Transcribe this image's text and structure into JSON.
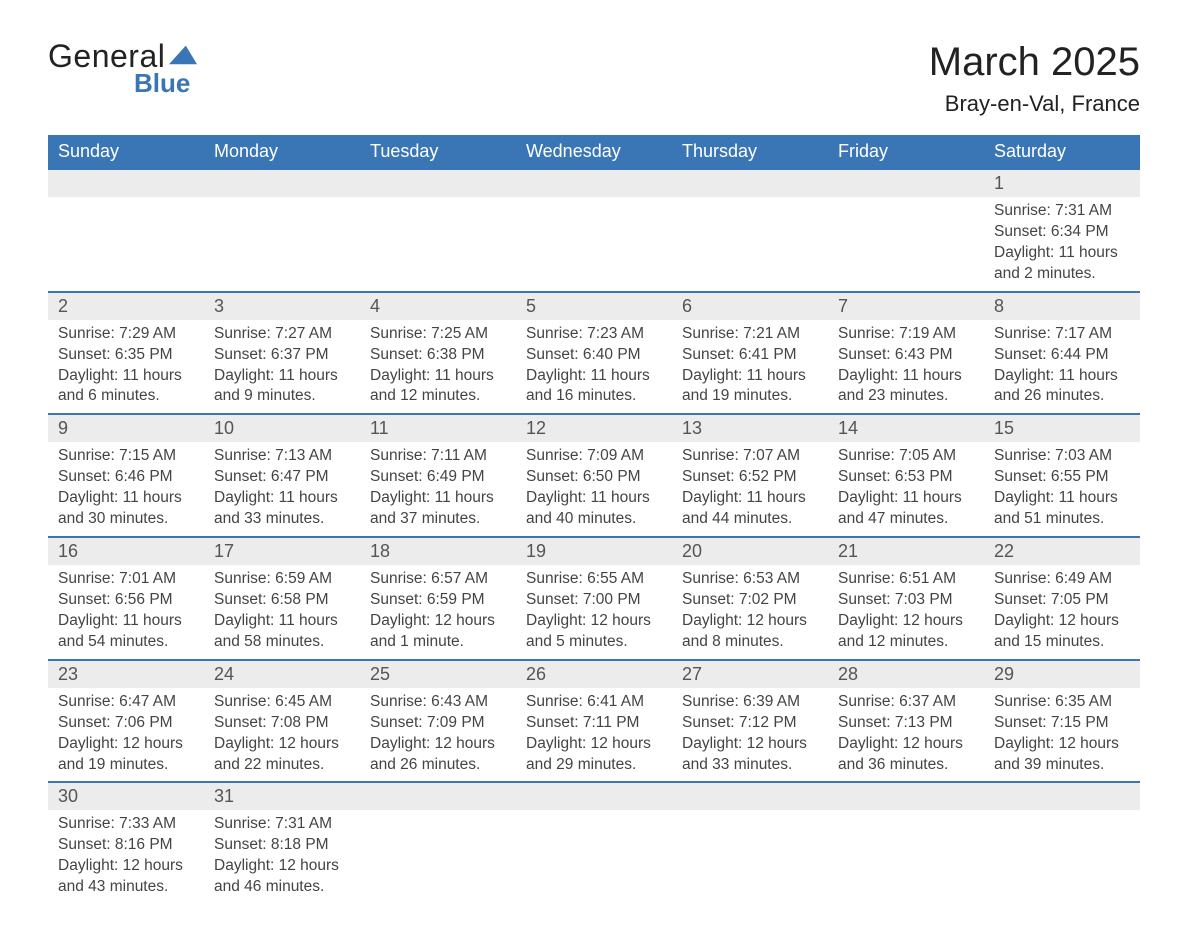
{
  "brand": {
    "word1": "General",
    "word2": "Blue",
    "icon_color": "#3a75b6"
  },
  "header": {
    "title": "March 2025",
    "location": "Bray-en-Val, France"
  },
  "colors": {
    "header_bg": "#3a75b6",
    "header_text": "#ffffff",
    "daynum_bg": "#ececec",
    "row_border": "#3a75b6",
    "body_text": "#444444"
  },
  "columns": [
    "Sunday",
    "Monday",
    "Tuesday",
    "Wednesday",
    "Thursday",
    "Friday",
    "Saturday"
  ],
  "weeks": [
    [
      {
        "blank": true
      },
      {
        "blank": true
      },
      {
        "blank": true
      },
      {
        "blank": true
      },
      {
        "blank": true
      },
      {
        "blank": true
      },
      {
        "day": "1",
        "sunrise": "Sunrise: 7:31 AM",
        "sunset": "Sunset: 6:34 PM",
        "day1": "Daylight: 11 hours",
        "day2": "and 2 minutes."
      }
    ],
    [
      {
        "day": "2",
        "sunrise": "Sunrise: 7:29 AM",
        "sunset": "Sunset: 6:35 PM",
        "day1": "Daylight: 11 hours",
        "day2": "and 6 minutes."
      },
      {
        "day": "3",
        "sunrise": "Sunrise: 7:27 AM",
        "sunset": "Sunset: 6:37 PM",
        "day1": "Daylight: 11 hours",
        "day2": "and 9 minutes."
      },
      {
        "day": "4",
        "sunrise": "Sunrise: 7:25 AM",
        "sunset": "Sunset: 6:38 PM",
        "day1": "Daylight: 11 hours",
        "day2": "and 12 minutes."
      },
      {
        "day": "5",
        "sunrise": "Sunrise: 7:23 AM",
        "sunset": "Sunset: 6:40 PM",
        "day1": "Daylight: 11 hours",
        "day2": "and 16 minutes."
      },
      {
        "day": "6",
        "sunrise": "Sunrise: 7:21 AM",
        "sunset": "Sunset: 6:41 PM",
        "day1": "Daylight: 11 hours",
        "day2": "and 19 minutes."
      },
      {
        "day": "7",
        "sunrise": "Sunrise: 7:19 AM",
        "sunset": "Sunset: 6:43 PM",
        "day1": "Daylight: 11 hours",
        "day2": "and 23 minutes."
      },
      {
        "day": "8",
        "sunrise": "Sunrise: 7:17 AM",
        "sunset": "Sunset: 6:44 PM",
        "day1": "Daylight: 11 hours",
        "day2": "and 26 minutes."
      }
    ],
    [
      {
        "day": "9",
        "sunrise": "Sunrise: 7:15 AM",
        "sunset": "Sunset: 6:46 PM",
        "day1": "Daylight: 11 hours",
        "day2": "and 30 minutes."
      },
      {
        "day": "10",
        "sunrise": "Sunrise: 7:13 AM",
        "sunset": "Sunset: 6:47 PM",
        "day1": "Daylight: 11 hours",
        "day2": "and 33 minutes."
      },
      {
        "day": "11",
        "sunrise": "Sunrise: 7:11 AM",
        "sunset": "Sunset: 6:49 PM",
        "day1": "Daylight: 11 hours",
        "day2": "and 37 minutes."
      },
      {
        "day": "12",
        "sunrise": "Sunrise: 7:09 AM",
        "sunset": "Sunset: 6:50 PM",
        "day1": "Daylight: 11 hours",
        "day2": "and 40 minutes."
      },
      {
        "day": "13",
        "sunrise": "Sunrise: 7:07 AM",
        "sunset": "Sunset: 6:52 PM",
        "day1": "Daylight: 11 hours",
        "day2": "and 44 minutes."
      },
      {
        "day": "14",
        "sunrise": "Sunrise: 7:05 AM",
        "sunset": "Sunset: 6:53 PM",
        "day1": "Daylight: 11 hours",
        "day2": "and 47 minutes."
      },
      {
        "day": "15",
        "sunrise": "Sunrise: 7:03 AM",
        "sunset": "Sunset: 6:55 PM",
        "day1": "Daylight: 11 hours",
        "day2": "and 51 minutes."
      }
    ],
    [
      {
        "day": "16",
        "sunrise": "Sunrise: 7:01 AM",
        "sunset": "Sunset: 6:56 PM",
        "day1": "Daylight: 11 hours",
        "day2": "and 54 minutes."
      },
      {
        "day": "17",
        "sunrise": "Sunrise: 6:59 AM",
        "sunset": "Sunset: 6:58 PM",
        "day1": "Daylight: 11 hours",
        "day2": "and 58 minutes."
      },
      {
        "day": "18",
        "sunrise": "Sunrise: 6:57 AM",
        "sunset": "Sunset: 6:59 PM",
        "day1": "Daylight: 12 hours",
        "day2": "and 1 minute."
      },
      {
        "day": "19",
        "sunrise": "Sunrise: 6:55 AM",
        "sunset": "Sunset: 7:00 PM",
        "day1": "Daylight: 12 hours",
        "day2": "and 5 minutes."
      },
      {
        "day": "20",
        "sunrise": "Sunrise: 6:53 AM",
        "sunset": "Sunset: 7:02 PM",
        "day1": "Daylight: 12 hours",
        "day2": "and 8 minutes."
      },
      {
        "day": "21",
        "sunrise": "Sunrise: 6:51 AM",
        "sunset": "Sunset: 7:03 PM",
        "day1": "Daylight: 12 hours",
        "day2": "and 12 minutes."
      },
      {
        "day": "22",
        "sunrise": "Sunrise: 6:49 AM",
        "sunset": "Sunset: 7:05 PM",
        "day1": "Daylight: 12 hours",
        "day2": "and 15 minutes."
      }
    ],
    [
      {
        "day": "23",
        "sunrise": "Sunrise: 6:47 AM",
        "sunset": "Sunset: 7:06 PM",
        "day1": "Daylight: 12 hours",
        "day2": "and 19 minutes."
      },
      {
        "day": "24",
        "sunrise": "Sunrise: 6:45 AM",
        "sunset": "Sunset: 7:08 PM",
        "day1": "Daylight: 12 hours",
        "day2": "and 22 minutes."
      },
      {
        "day": "25",
        "sunrise": "Sunrise: 6:43 AM",
        "sunset": "Sunset: 7:09 PM",
        "day1": "Daylight: 12 hours",
        "day2": "and 26 minutes."
      },
      {
        "day": "26",
        "sunrise": "Sunrise: 6:41 AM",
        "sunset": "Sunset: 7:11 PM",
        "day1": "Daylight: 12 hours",
        "day2": "and 29 minutes."
      },
      {
        "day": "27",
        "sunrise": "Sunrise: 6:39 AM",
        "sunset": "Sunset: 7:12 PM",
        "day1": "Daylight: 12 hours",
        "day2": "and 33 minutes."
      },
      {
        "day": "28",
        "sunrise": "Sunrise: 6:37 AM",
        "sunset": "Sunset: 7:13 PM",
        "day1": "Daylight: 12 hours",
        "day2": "and 36 minutes."
      },
      {
        "day": "29",
        "sunrise": "Sunrise: 6:35 AM",
        "sunset": "Sunset: 7:15 PM",
        "day1": "Daylight: 12 hours",
        "day2": "and 39 minutes."
      }
    ],
    [
      {
        "day": "30",
        "sunrise": "Sunrise: 7:33 AM",
        "sunset": "Sunset: 8:16 PM",
        "day1": "Daylight: 12 hours",
        "day2": "and 43 minutes."
      },
      {
        "day": "31",
        "sunrise": "Sunrise: 7:31 AM",
        "sunset": "Sunset: 8:18 PM",
        "day1": "Daylight: 12 hours",
        "day2": "and 46 minutes."
      },
      {
        "blank": true
      },
      {
        "blank": true
      },
      {
        "blank": true
      },
      {
        "blank": true
      },
      {
        "blank": true
      }
    ]
  ]
}
